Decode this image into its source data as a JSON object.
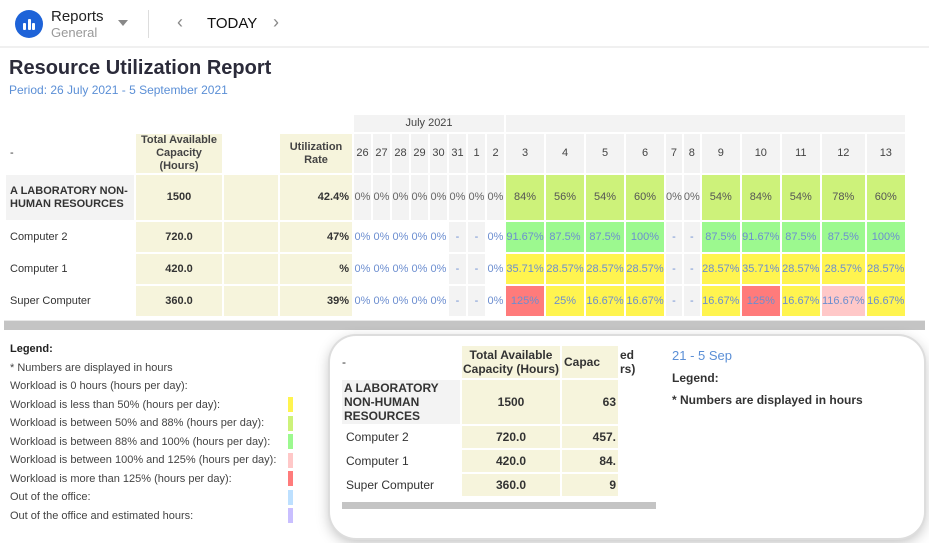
{
  "topbar": {
    "app_title": "Reports",
    "app_subtitle": "General",
    "today_label": "TODAY",
    "prev_icon": "chevron-left-icon",
    "next_icon": "chevron-right-icon",
    "logo_icon": "bar-chart-icon"
  },
  "report": {
    "title": "Resource Utilization Report",
    "period": "Period: 26 July 2021 - 5 September 2021"
  },
  "table": {
    "corner": "-",
    "month": "July 2021",
    "col_total": "Total Available Capacity (Hours)",
    "col_util": "Utilization Rate",
    "days": [
      "26",
      "27",
      "28",
      "29",
      "30",
      "31",
      "1",
      "2",
      "3",
      "4",
      "5",
      "6",
      "7",
      "8",
      "9",
      "10",
      "11",
      "12",
      "13"
    ],
    "rows": [
      {
        "label": "A LABORATORY NON-HUMAN RESOURCES",
        "total": "1500",
        "util": "42.4%",
        "group": true,
        "cells": [
          [
            "0%",
            "g"
          ],
          [
            "0%",
            "g"
          ],
          [
            "0%",
            "g"
          ],
          [
            "0%",
            "g"
          ],
          [
            "0%",
            "g"
          ],
          [
            "0%",
            "g"
          ],
          [
            "0%",
            "g"
          ],
          [
            "0%",
            "g"
          ],
          [
            "84%",
            "lgreen"
          ],
          [
            "56%",
            "lgreen"
          ],
          [
            "54%",
            "lgreen"
          ],
          [
            "60%",
            "lgreen"
          ],
          [
            "0%",
            "g"
          ],
          [
            "0%",
            "g"
          ],
          [
            "54%",
            "lgreen"
          ],
          [
            "84%",
            "lgreen"
          ],
          [
            "54%",
            "lgreen"
          ],
          [
            "78%",
            "lgreen"
          ],
          [
            "60%",
            "lgreen"
          ]
        ]
      },
      {
        "label": "Computer 2",
        "total": "720.0",
        "util": "47%",
        "cells": [
          [
            "0%",
            "w"
          ],
          [
            "0%",
            "w"
          ],
          [
            "0%",
            "w"
          ],
          [
            "0%",
            "w"
          ],
          [
            "0%",
            "w"
          ],
          [
            "-",
            "g"
          ],
          [
            "-",
            "g"
          ],
          [
            "0%",
            "w"
          ],
          [
            "91.67%",
            "green"
          ],
          [
            "87.5%",
            "green"
          ],
          [
            "87.5%",
            "green"
          ],
          [
            "100%",
            "green"
          ],
          [
            "-",
            "g"
          ],
          [
            "-",
            "g"
          ],
          [
            "87.5%",
            "green"
          ],
          [
            "91.67%",
            "green"
          ],
          [
            "87.5%",
            "green"
          ],
          [
            "87.5%",
            "green"
          ],
          [
            "100%",
            "green"
          ]
        ]
      },
      {
        "label": "Computer 1",
        "total": "420.0",
        "util": "%",
        "cells": [
          [
            "0%",
            "w"
          ],
          [
            "0%",
            "w"
          ],
          [
            "0%",
            "w"
          ],
          [
            "0%",
            "w"
          ],
          [
            "0%",
            "w"
          ],
          [
            "-",
            "g"
          ],
          [
            "-",
            "g"
          ],
          [
            "0%",
            "w"
          ],
          [
            "35.71%",
            "yellow"
          ],
          [
            "28.57%",
            "yellow"
          ],
          [
            "28.57%",
            "yellow"
          ],
          [
            "28.57%",
            "yellow"
          ],
          [
            "-",
            "g"
          ],
          [
            "-",
            "g"
          ],
          [
            "28.57%",
            "yellow"
          ],
          [
            "35.71%",
            "yellow"
          ],
          [
            "28.57%",
            "yellow"
          ],
          [
            "28.57%",
            "yellow"
          ],
          [
            "28.57%",
            "yellow"
          ]
        ]
      },
      {
        "label": "Super Computer",
        "total": "360.0",
        "util": "39%",
        "cells": [
          [
            "0%",
            "w"
          ],
          [
            "0%",
            "w"
          ],
          [
            "0%",
            "w"
          ],
          [
            "0%",
            "w"
          ],
          [
            "0%",
            "w"
          ],
          [
            "-",
            "g"
          ],
          [
            "-",
            "g"
          ],
          [
            "0%",
            "w"
          ],
          [
            "125%",
            "red"
          ],
          [
            "25%",
            "yellow"
          ],
          [
            "16.67%",
            "yellow"
          ],
          [
            "16.67%",
            "yellow"
          ],
          [
            "-",
            "g"
          ],
          [
            "-",
            "g"
          ],
          [
            "16.67%",
            "yellow"
          ],
          [
            "125%",
            "red"
          ],
          [
            "16.67%",
            "yellow"
          ],
          [
            "116.67%",
            "pink"
          ],
          [
            "16.67%",
            "yellow"
          ]
        ]
      }
    ]
  },
  "legend": {
    "title": "Legend:",
    "note": "* Numbers are displayed in hours",
    "items": [
      {
        "label": "Workload is 0 hours (hours per day):",
        "color": "#ffffff"
      },
      {
        "label": "Workload is less than 50% (hours per day):",
        "color": "#fff44f"
      },
      {
        "label": "Workload is between 50% and 88% (hours per day):",
        "color": "#cdf27a"
      },
      {
        "label": "Workload is between 88% and 100% (hours per day):",
        "color": "#9cf98f"
      },
      {
        "label": "Workload is between 100% and 125% (hours per day):",
        "color": "#ffc8c8"
      },
      {
        "label": "Workload is more than 125% (hours per day):",
        "color": "#ff7b7b"
      },
      {
        "label": "Out of the office:",
        "color": "#bde0ff"
      },
      {
        "label": "Out of the office and estimated hours:",
        "color": "#c9bfff"
      }
    ]
  },
  "magnifier": {
    "period_fragment": "21 - 5 Sep",
    "header_fragment_1": "ed",
    "header_fragment_2": "rs)",
    "capacity_fragment": "Capac",
    "cap_values": [
      "63",
      "457.",
      "84.",
      "9"
    ]
  }
}
